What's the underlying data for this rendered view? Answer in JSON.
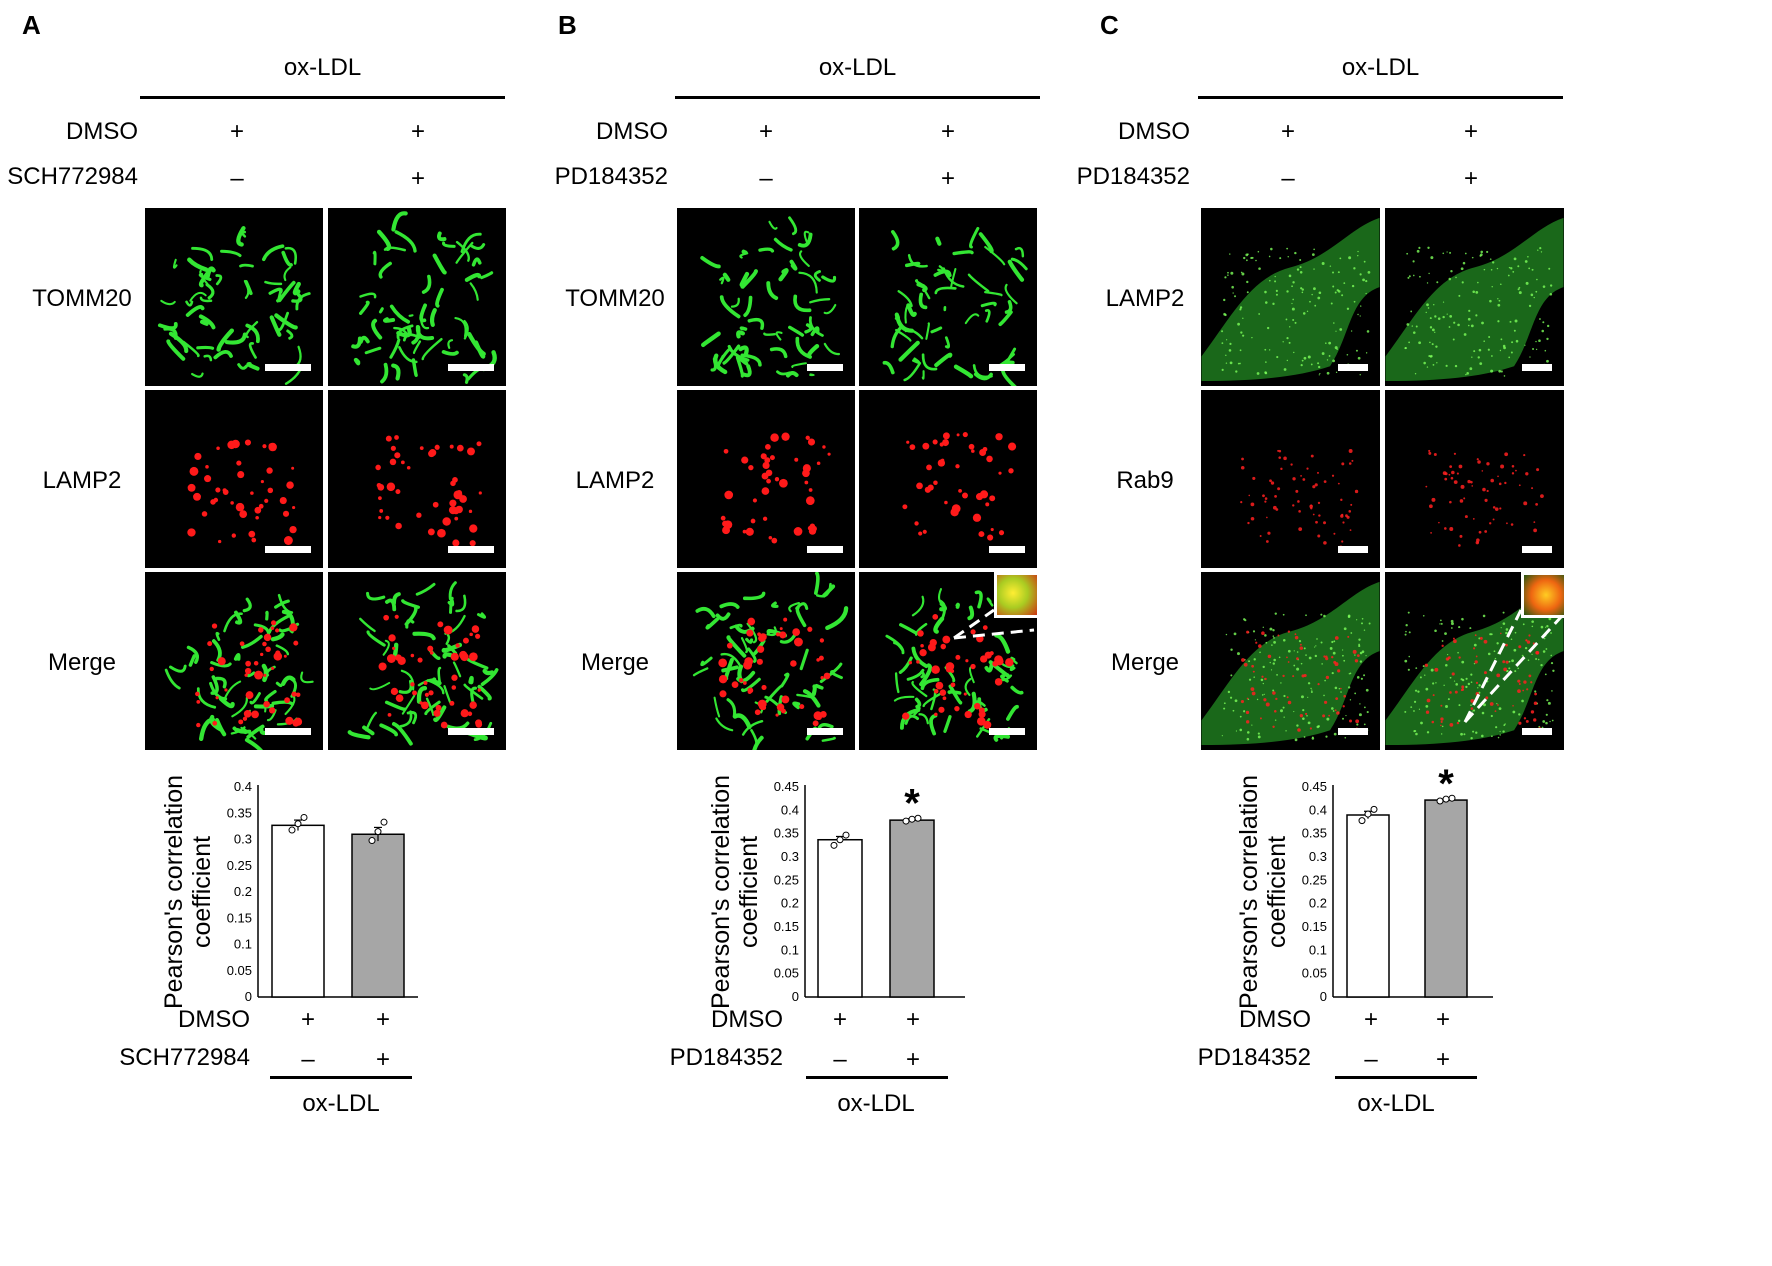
{
  "panels": [
    {
      "letter": "A",
      "header": "ox-LDL",
      "row1_label": "DMSO",
      "row1_values": [
        "+",
        "+"
      ],
      "row2_label": "SCH772984",
      "row2_values": [
        "–",
        "+"
      ],
      "image_rows": [
        "TOMM20",
        "LAMP2",
        "Merge"
      ],
      "image_row_colors": [
        "green",
        "red",
        "merge"
      ],
      "chart_data": {
        "type": "bar",
        "categories": [
          "DMSO+ SCH772984–",
          "DMSO+ SCH772984+"
        ],
        "values": [
          0.327,
          0.31
        ],
        "errors": [
          0.01,
          0.013
        ],
        "points": [
          [
            0.318,
            0.33,
            0.342
          ],
          [
            0.298,
            0.315,
            0.333
          ]
        ],
        "colors": [
          "#ffffff",
          "#a6a6a6"
        ],
        "ylim": [
          0,
          0.4
        ],
        "yticks": [
          "0",
          "0.05",
          "0.1",
          "0.15",
          "0.2",
          "0.25",
          "0.3",
          "0.35",
          "0.4"
        ],
        "ylabel": [
          "Pearson's correlation",
          "coefficient"
        ],
        "significance": [
          "",
          ""
        ],
        "grid": false
      },
      "bottom_row1_label": "DMSO",
      "bottom_row1_values": [
        "+",
        "+"
      ],
      "bottom_row2_label": "SCH772984",
      "bottom_row2_values": [
        "–",
        "+"
      ],
      "footer": "ox-LDL"
    },
    {
      "letter": "B",
      "header": "ox-LDL",
      "row1_label": "DMSO",
      "row1_values": [
        "+",
        "+"
      ],
      "row2_label": "PD184352",
      "row2_values": [
        "–",
        "+"
      ],
      "image_rows": [
        "TOMM20",
        "LAMP2",
        "Merge"
      ],
      "image_row_colors": [
        "green",
        "red",
        "merge"
      ],
      "chart_data": {
        "type": "bar",
        "categories": [
          "DMSO+ PD184352–",
          "DMSO+ PD184352+"
        ],
        "values": [
          0.337,
          0.379
        ],
        "errors": [
          0.007,
          0.003
        ],
        "points": [
          [
            0.325,
            0.337,
            0.347
          ],
          [
            0.377,
            0.381,
            0.383
          ]
        ],
        "colors": [
          "#ffffff",
          "#a6a6a6"
        ],
        "ylim": [
          0,
          0.45
        ],
        "yticks": [
          "0",
          "0.05",
          "0.1",
          "0.15",
          "0.2",
          "0.25",
          "0.3",
          "0.35",
          "0.4",
          "0.45"
        ],
        "ylabel": [
          "Pearson's correlation",
          "coefficient"
        ],
        "significance": [
          "",
          "*"
        ],
        "grid": false
      },
      "bottom_row1_label": "DMSO",
      "bottom_row1_values": [
        "+",
        "+"
      ],
      "bottom_row2_label": "PD184352",
      "bottom_row2_values": [
        "–",
        "+"
      ],
      "footer": "ox-LDL"
    },
    {
      "letter": "C",
      "header": "ox-LDL",
      "row1_label": "DMSO",
      "row1_values": [
        "+",
        "+"
      ],
      "row2_label": "PD184352",
      "row2_values": [
        "–",
        "+"
      ],
      "image_rows": [
        "LAMP2",
        "Rab9",
        "Merge"
      ],
      "image_row_colors": [
        "green",
        "red",
        "merge"
      ],
      "chart_data": {
        "type": "bar",
        "categories": [
          "DMSO+ PD184352–",
          "DMSO+ PD184352+"
        ],
        "values": [
          0.39,
          0.422
        ],
        "errors": [
          0.008,
          0.002
        ],
        "points": [
          [
            0.378,
            0.392,
            0.402
          ],
          [
            0.42,
            0.424,
            0.426
          ]
        ],
        "colors": [
          "#ffffff",
          "#a6a6a6"
        ],
        "ylim": [
          0,
          0.45
        ],
        "yticks": [
          "0",
          "0.05",
          "0.1",
          "0.15",
          "0.2",
          "0.25",
          "0.3",
          "0.35",
          "0.4",
          "0.45"
        ],
        "ylabel": [
          "Pearson's correlation",
          "coefficient"
        ],
        "significance": [
          "",
          "*"
        ],
        "grid": false
      },
      "bottom_row1_label": "DMSO",
      "bottom_row1_values": [
        "+",
        "+"
      ],
      "bottom_row2_label": "PD184352",
      "bottom_row2_values": [
        "–",
        "+"
      ],
      "footer": "ox-LDL"
    }
  ]
}
